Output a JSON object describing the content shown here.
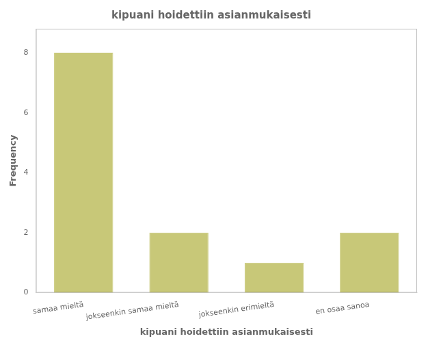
{
  "chart_data": {
    "type": "bar",
    "title": "kipuani hoidettiin asianmukaisesti",
    "xlabel": "kipuani hoidettiin asianmukaisesti",
    "ylabel": "Frequency",
    "categories": [
      "samaa mieltä",
      "jokseenkin samaa mieltä",
      "jokseenkin erimieltä",
      "en osaa sanoa"
    ],
    "values": [
      8,
      2,
      1,
      2
    ],
    "color": "#c8c878",
    "ylim": [
      0,
      8.8
    ],
    "yticks": [
      0,
      2,
      4,
      6,
      8
    ],
    "grid": false
  }
}
